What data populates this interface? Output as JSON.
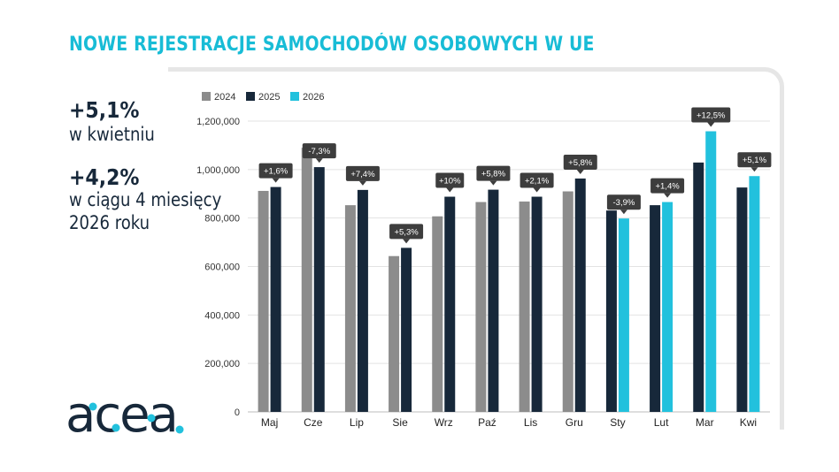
{
  "title": "NOWE REJESTRACJE SAMOCHODÓW OSOBOWYCH W UE",
  "stats": [
    {
      "value": "+5,1%",
      "label_lines": [
        "w kwietniu"
      ]
    },
    {
      "value": "+4,2%",
      "label_lines": [
        "w ciągu 4 miesięcy",
        "2026 roku"
      ]
    }
  ],
  "logo_text": "acea",
  "colors": {
    "2024": "#8c8c8c",
    "2025": "#17283a",
    "2026": "#22c1dd",
    "accent": "#18bcd6",
    "grid": "#e3e3e3",
    "badge": "#3d3d3d"
  },
  "chart_data": {
    "type": "bar",
    "legend": [
      "2024",
      "2025",
      "2026"
    ],
    "legend_position": "top-left",
    "y_ticks": [
      "0",
      "200,000",
      "400,000",
      "600,000",
      "800,000",
      "1,000,000",
      "1,200,000"
    ],
    "ylim": [
      0,
      1200000
    ],
    "grid": true,
    "categories": [
      {
        "label": "Maj",
        "bars": [
          {
            "series": "2024",
            "value": 912000
          },
          {
            "series": "2025",
            "value": 928000
          }
        ],
        "change": "+1,6%"
      },
      {
        "label": "Cze",
        "bars": [
          {
            "series": "2024",
            "value": 1090000
          },
          {
            "series": "2025",
            "value": 1010000
          }
        ],
        "change": "-7,3%"
      },
      {
        "label": "Lip",
        "bars": [
          {
            "series": "2024",
            "value": 853000
          },
          {
            "series": "2025",
            "value": 916000
          }
        ],
        "change": "+7,4%"
      },
      {
        "label": "Sie",
        "bars": [
          {
            "series": "2024",
            "value": 643000
          },
          {
            "series": "2025",
            "value": 677000
          }
        ],
        "change": "+5,3%"
      },
      {
        "label": "Wrz",
        "bars": [
          {
            "series": "2024",
            "value": 807000
          },
          {
            "series": "2025",
            "value": 888000
          }
        ],
        "change": "+10%"
      },
      {
        "label": "Paź",
        "bars": [
          {
            "series": "2024",
            "value": 866000
          },
          {
            "series": "2025",
            "value": 917000
          }
        ],
        "change": "+5,8%"
      },
      {
        "label": "Lis",
        "bars": [
          {
            "series": "2024",
            "value": 868000
          },
          {
            "series": "2025",
            "value": 888000
          }
        ],
        "change": "+2,1%"
      },
      {
        "label": "Gru",
        "bars": [
          {
            "series": "2024",
            "value": 910000
          },
          {
            "series": "2025",
            "value": 963000
          }
        ],
        "change": "+5,8%"
      },
      {
        "label": "Sty",
        "bars": [
          {
            "series": "2025",
            "value": 831000
          },
          {
            "series": "2026",
            "value": 798000
          }
        ],
        "change": "-3,9%"
      },
      {
        "label": "Lut",
        "bars": [
          {
            "series": "2025",
            "value": 853000
          },
          {
            "series": "2026",
            "value": 866000
          }
        ],
        "change": "+1,4%"
      },
      {
        "label": "Mar",
        "bars": [
          {
            "series": "2025",
            "value": 1029000
          },
          {
            "series": "2026",
            "value": 1158000
          }
        ],
        "change": "+12,5%"
      },
      {
        "label": "Kwi",
        "bars": [
          {
            "series": "2025",
            "value": 926000
          },
          {
            "series": "2026",
            "value": 973000
          }
        ],
        "change": "+5,1%"
      }
    ]
  }
}
